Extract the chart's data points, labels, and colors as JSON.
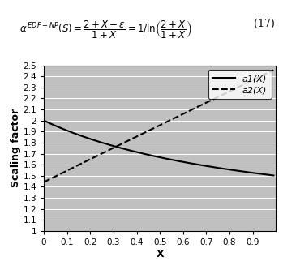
{
  "title": "",
  "xlabel": "X",
  "ylabel": "Scaling factor",
  "xlim": [
    0,
    1.0
  ],
  "ylim": [
    1.0,
    2.5
  ],
  "yticks": [
    1.0,
    1.1,
    1.2,
    1.3,
    1.4,
    1.5,
    1.6,
    1.7,
    1.8,
    1.9,
    2.0,
    2.1,
    2.2,
    2.3,
    2.4,
    2.5
  ],
  "xticks": [
    0,
    0.1,
    0.2,
    0.3,
    0.4,
    0.5,
    0.6,
    0.7,
    0.8,
    0.9
  ],
  "a1_label": "a1(X)",
  "a2_label": "a2(X)",
  "line_color": "#000000",
  "bg_color": "#c0c0c0",
  "legend_loc": "upper right",
  "eq_number": "(17)"
}
